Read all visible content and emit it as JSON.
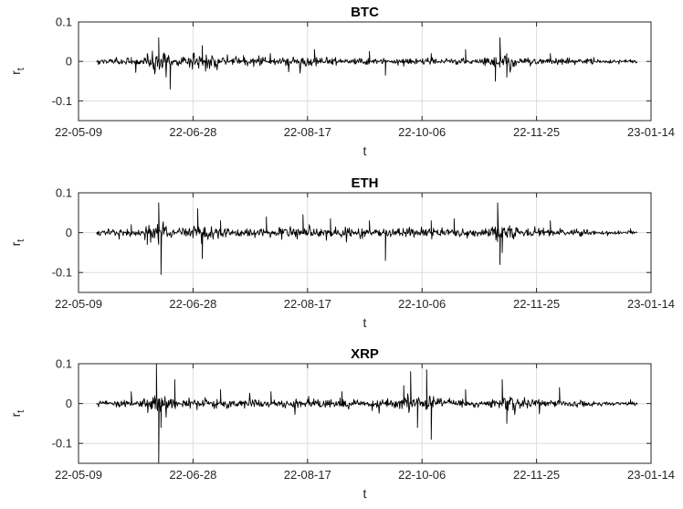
{
  "figure": {
    "background": "#ffffff",
    "line_color": "#000000",
    "grid_color": "#dcdcdc",
    "axis_color": "#262626"
  },
  "chart_data": [
    {
      "type": "line",
      "title": "BTC",
      "xlabel": "t",
      "ylabel_main": "r",
      "ylabel_sub": "t",
      "xlim": [
        "2022-05-09",
        "2023-01-14"
      ],
      "ylim": [
        -0.15,
        0.1
      ],
      "x_ticks": [
        "22-05-09",
        "22-06-28",
        "22-08-17",
        "22-10-06",
        "22-11-25",
        "23-01-14"
      ],
      "y_ticks": [
        "0.1",
        "0",
        "-0.1"
      ],
      "grid": true,
      "series": [
        {
          "x": [
            "2022-05-17",
            "2022-06-01",
            "2022-06-08",
            "2022-06-13",
            "2022-06-18",
            "2022-06-28",
            "2022-07-02",
            "2022-07-20",
            "2022-08-20",
            "2022-09-13",
            "2022-09-20",
            "2022-10-10",
            "2022-10-25",
            "2022-11-07",
            "2022-11-09",
            "2022-11-12",
            "2022-12-01",
            "2022-12-20",
            "2023-01-05"
          ],
          "y": [
            0.0,
            0.01,
            0.02,
            0.06,
            -0.07,
            0.02,
            0.04,
            0.015,
            0.03,
            0.025,
            -0.035,
            0.02,
            0.03,
            -0.05,
            0.06,
            -0.04,
            0.02,
            0.01,
            0.005
          ]
        }
      ]
    },
    {
      "type": "line",
      "title": "ETH",
      "xlabel": "t",
      "ylabel_main": "r",
      "ylabel_sub": "t",
      "xlim": [
        "2022-05-09",
        "2023-01-14"
      ],
      "ylim": [
        -0.15,
        0.1
      ],
      "x_ticks": [
        "22-05-09",
        "22-06-28",
        "22-08-17",
        "22-10-06",
        "22-11-25",
        "23-01-14"
      ],
      "y_ticks": [
        "0.1",
        "0",
        "-0.1"
      ],
      "grid": true,
      "series": [
        {
          "x": [
            "2022-05-17",
            "2022-06-01",
            "2022-06-08",
            "2022-06-13",
            "2022-06-14",
            "2022-06-30",
            "2022-07-02",
            "2022-07-10",
            "2022-07-30",
            "2022-08-15",
            "2022-08-27",
            "2022-09-13",
            "2022-09-20",
            "2022-10-10",
            "2022-10-20",
            "2022-11-08",
            "2022-11-09",
            "2022-11-10",
            "2022-12-01",
            "2023-01-05"
          ],
          "y": [
            0.0,
            0.02,
            -0.03,
            0.075,
            -0.105,
            0.06,
            -0.065,
            0.03,
            0.04,
            0.045,
            0.035,
            0.03,
            -0.07,
            0.03,
            0.035,
            0.075,
            -0.08,
            -0.05,
            0.03,
            0.01
          ]
        }
      ]
    },
    {
      "type": "line",
      "title": "XRP",
      "xlabel": "t",
      "ylabel_main": "r",
      "ylabel_sub": "t",
      "xlim": [
        "2022-05-09",
        "2023-01-14"
      ],
      "ylim": [
        -0.15,
        0.1
      ],
      "x_ticks": [
        "22-05-09",
        "22-06-28",
        "22-08-17",
        "22-10-06",
        "22-11-25",
        "23-01-14"
      ],
      "y_ticks": [
        "0.1",
        "0",
        "-0.1"
      ],
      "grid": true,
      "series": [
        {
          "x": [
            "2022-05-17",
            "2022-06-01",
            "2022-06-12",
            "2022-06-13",
            "2022-06-14",
            "2022-06-20",
            "2022-07-10",
            "2022-08-01",
            "2022-09-01",
            "2022-09-28",
            "2022-10-01",
            "2022-10-04",
            "2022-10-08",
            "2022-10-10",
            "2022-10-25",
            "2022-11-10",
            "2022-11-12",
            "2022-12-05",
            "2023-01-05"
          ],
          "y": [
            0.0,
            0.03,
            0.1,
            -0.15,
            -0.06,
            0.06,
            0.035,
            0.03,
            0.03,
            0.045,
            0.08,
            -0.06,
            0.085,
            -0.09,
            0.035,
            0.06,
            -0.05,
            0.04,
            0.01
          ]
        }
      ]
    }
  ]
}
